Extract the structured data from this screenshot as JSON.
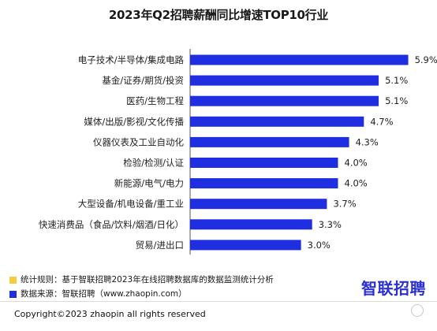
{
  "chart_data": {
    "type": "bar",
    "orientation": "horizontal",
    "title": "2023年Q2招聘薪酬同比增速TOP10行业",
    "categories": [
      "电子技术/半导体/集成电路",
      "基金/证券/期货/投资",
      "医药/生物工程",
      "媒体/出版/影视/文化传播",
      "仪器仪表及工业自动化",
      "检验/检测/认证",
      "新能源/电气/电力",
      "大型设备/机电设备/重工业",
      "快速消费品（食品/饮料/烟酒/日化）",
      "贸易/进出口"
    ],
    "values": [
      5.9,
      5.1,
      5.1,
      4.7,
      4.3,
      4.0,
      4.0,
      3.7,
      3.3,
      3.0
    ],
    "value_labels": [
      "5.9%",
      "5.1%",
      "5.1%",
      "4.7%",
      "4.3%",
      "4.0%",
      "4.0%",
      "3.7%",
      "3.3%",
      "3.0%"
    ],
    "xlim": [
      0,
      6.4
    ],
    "grid": false,
    "bar_color": "#1f2ee0"
  },
  "notes": [
    {
      "text": "统计规则：基于智联招聘2023年在线招聘数据库的数据监测统计分析",
      "color": "#f5cc3d"
    },
    {
      "text": "数据来源：智联招聘（www.zhaopin.com）",
      "color": "#1f2ee0"
    }
  ],
  "brand": {
    "name": "智联招聘",
    "color": "#2a2fd6"
  },
  "footer": {
    "copyright": "Copyright©2023 zhaopin all rights reserved"
  }
}
